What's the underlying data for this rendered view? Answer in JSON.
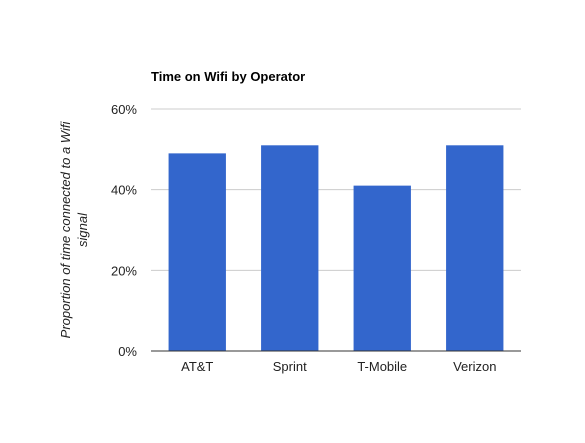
{
  "chart_data": {
    "type": "bar",
    "title": "Time on Wifi by Operator",
    "xlabel": "",
    "ylabel_lines": [
      "Proportion of time connected to a Wifi",
      "signal"
    ],
    "categories": [
      "AT&T",
      "Sprint",
      "T-Mobile",
      "Verizon"
    ],
    "values": [
      49,
      51,
      41,
      51
    ],
    "unit": "%",
    "ylim": [
      0,
      60
    ],
    "yticks": [
      0,
      20,
      40,
      60
    ],
    "ytick_labels": [
      "0%",
      "20%",
      "40%",
      "60%"
    ],
    "grid": true,
    "legend": "none",
    "colors": {
      "bar": "#3366cc",
      "grid": "#cccccc",
      "baseline": "#333333"
    }
  }
}
